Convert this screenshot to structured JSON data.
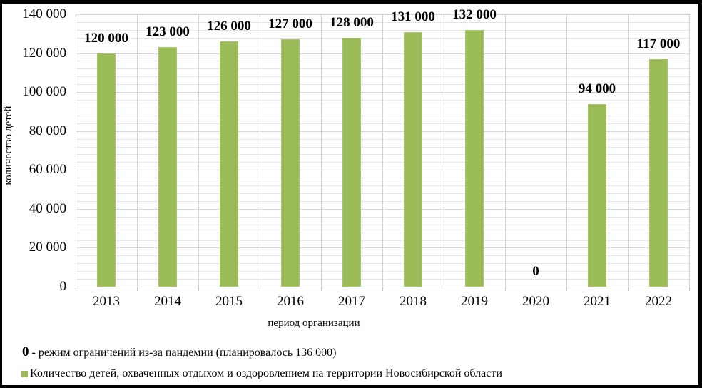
{
  "chart_data": {
    "type": "bar",
    "title": "",
    "xlabel": "период организации",
    "ylabel": "количество детей",
    "categories": [
      "2013",
      "2014",
      "2015",
      "2016",
      "2017",
      "2018",
      "2019",
      "2020",
      "2021",
      "2022"
    ],
    "series": [
      {
        "name": "Количество детей, охваченных отдыхом и оздоровлением на территории Новосибирской области",
        "color": "#9bbb59",
        "values": [
          120000,
          123000,
          126000,
          127000,
          128000,
          131000,
          132000,
          0,
          94000,
          117000
        ],
        "data_labels": [
          "120 000",
          "123 000",
          "126 000",
          "127 000",
          "128 000",
          "131 000",
          "132 000",
          "0",
          "94 000",
          "117 000"
        ]
      }
    ],
    "ylim": [
      0,
      140000
    ],
    "yticks": [
      0,
      20000,
      40000,
      60000,
      80000,
      100000,
      120000,
      140000
    ],
    "ytick_labels": [
      "0",
      "20 000",
      "40 000",
      "60 000",
      "80 000",
      "100 000",
      "120 000",
      "140 000"
    ],
    "grid": true,
    "legend_position": "bottom-left",
    "annotations": [
      "0 - режим ограничений из-за пандемии (планировалось 136 000)"
    ]
  },
  "note": {
    "zero": "0",
    "text": " - режим ограничений из-за пандемии (планировалось 136 000)"
  },
  "legend": {
    "label": "Количество детей, охваченных отдыхом и оздоровлением на территории Новосибирской области",
    "icon": "square-swatch"
  }
}
